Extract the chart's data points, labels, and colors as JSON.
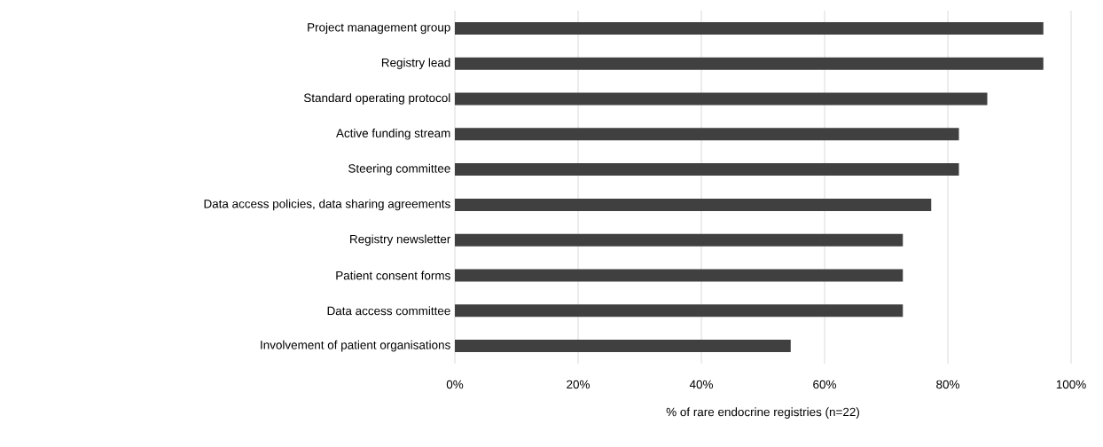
{
  "chart_data": {
    "type": "bar",
    "orientation": "horizontal",
    "xlabel": "% of rare endocrine registries (n=22)",
    "categories": [
      "Project management group",
      "Registry lead",
      "Standard operating protocol",
      "Active funding stream",
      "Steering committee",
      "Data access policies, data sharing agreements",
      "Registry newsletter",
      "Patient consent forms",
      "Data access committee",
      "Involvement of patient organisations"
    ],
    "values": [
      95.5,
      95.5,
      86.4,
      81.8,
      81.8,
      77.3,
      72.7,
      72.7,
      72.7,
      54.5
    ],
    "color": "#404040",
    "xlim": [
      0,
      100
    ],
    "xticks": [
      {
        "value": 0,
        "label": "0%"
      },
      {
        "value": 20,
        "label": "20%"
      },
      {
        "value": 40,
        "label": "40%"
      },
      {
        "value": 60,
        "label": "60%"
      },
      {
        "value": 80,
        "label": "80%"
      },
      {
        "value": 100,
        "label": "100%"
      }
    ],
    "grid": "x"
  }
}
